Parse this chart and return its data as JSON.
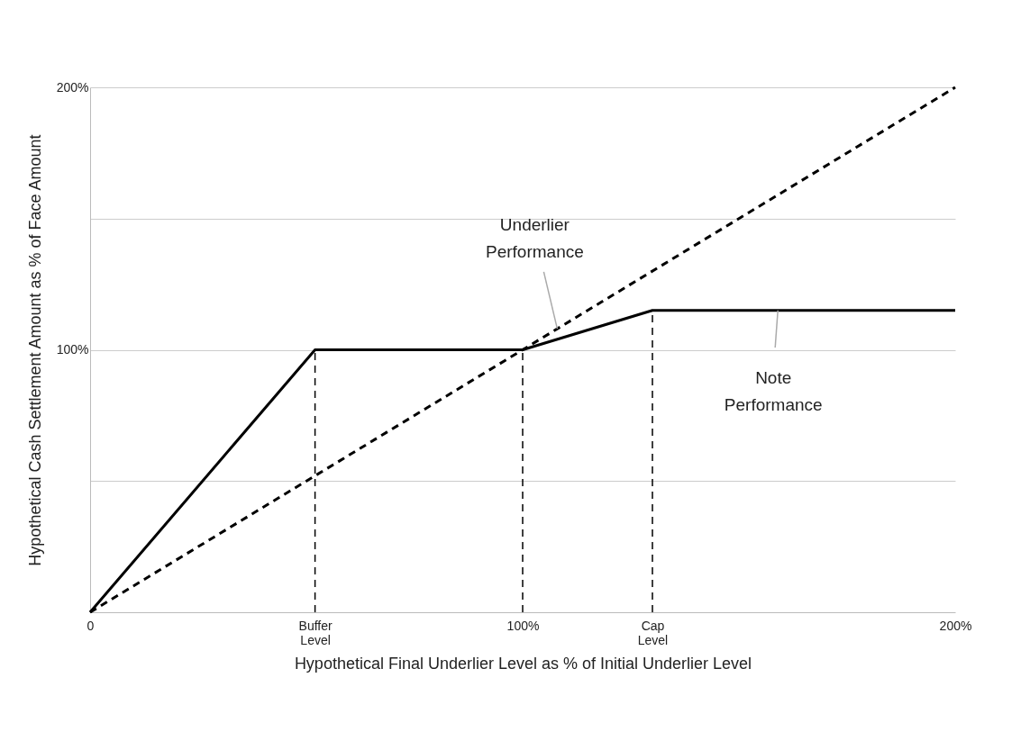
{
  "chart_data": {
    "type": "line",
    "xlabel": "Hypothetical Final Underlier Level as % of Initial Underlier Level",
    "ylabel": "Hypothetical Cash Settlement Amount as % of Face Amount",
    "xlim": [
      0,
      200
    ],
    "ylim": [
      0,
      200
    ],
    "xticks": [
      0,
      {
        "value": 52,
        "label": "Buffer Level"
      },
      {
        "value": 100,
        "label": "100%"
      },
      {
        "value": 130,
        "label": "Cap Level"
      },
      {
        "value": 200,
        "label": "200%"
      }
    ],
    "yticks": [
      {
        "value": 50,
        "label": null
      },
      {
        "value": 100,
        "label": "100%"
      },
      {
        "value": 150,
        "label": null
      },
      {
        "value": 200,
        "label": "200%"
      }
    ],
    "grid": "y",
    "marker": "none",
    "series": [
      {
        "color": "#000000",
        "line_style": "solid",
        "x": [
          0,
          52,
          100,
          130,
          200
        ],
        "values": [
          0,
          100,
          100,
          115,
          115
        ]
      },
      {
        "color": "#000000",
        "line_style": "dashed",
        "x": [
          0,
          200
        ],
        "values": [
          0,
          200
        ]
      }
    ],
    "ref_lines": [
      {
        "axis": "x",
        "value": 52,
        "label": null,
        "line_style": "dashed",
        "color": "#000000"
      },
      {
        "axis": "x",
        "value": 100,
        "label": null,
        "line_style": "dashed",
        "color": "#000000"
      },
      {
        "axis": "x",
        "value": 130,
        "label": null,
        "line_style": "dashed",
        "color": "#000000"
      }
    ],
    "annotations": [
      {
        "text": "Underlier Performance",
        "x": 108,
        "y": 108
      },
      {
        "text": "Note Performance",
        "x": 159,
        "y": 115
      }
    ]
  }
}
